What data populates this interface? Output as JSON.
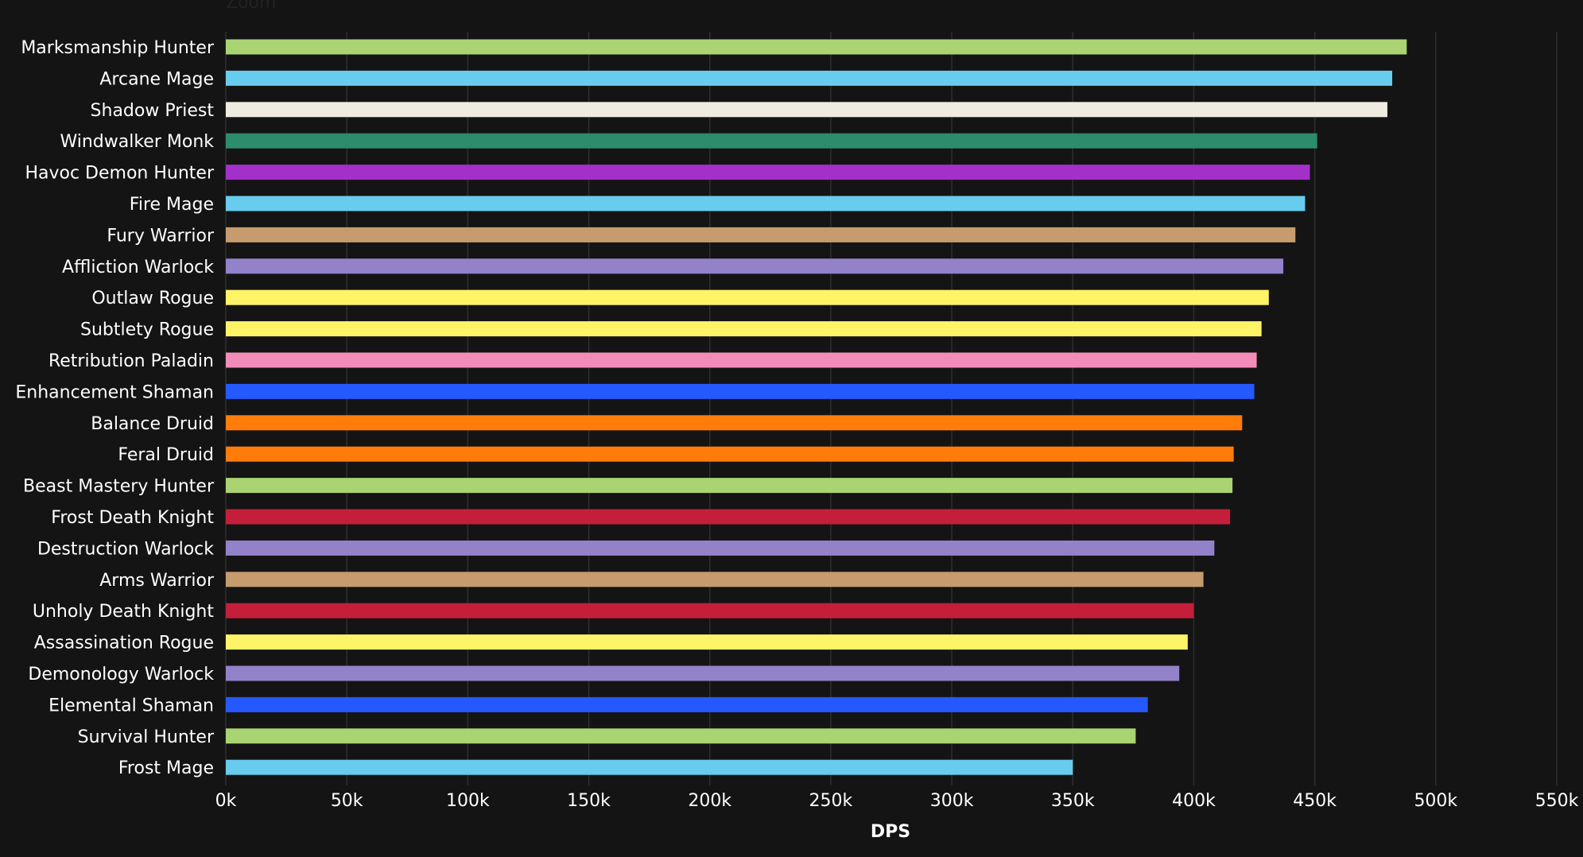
{
  "zoom_label": "Zoom",
  "chart_data": {
    "type": "bar",
    "orientation": "horizontal",
    "xlabel": "DPS",
    "xlim": [
      0,
      550000
    ],
    "x_ticks": [
      {
        "value": 0,
        "label": "0k"
      },
      {
        "value": 50000,
        "label": "50k"
      },
      {
        "value": 100000,
        "label": "100k"
      },
      {
        "value": 150000,
        "label": "150k"
      },
      {
        "value": 200000,
        "label": "200k"
      },
      {
        "value": 250000,
        "label": "250k"
      },
      {
        "value": 300000,
        "label": "300k"
      },
      {
        "value": 350000,
        "label": "350k"
      },
      {
        "value": 400000,
        "label": "400k"
      },
      {
        "value": 450000,
        "label": "450k"
      },
      {
        "value": 500000,
        "label": "500k"
      },
      {
        "value": 550000,
        "label": "550k"
      }
    ],
    "grid": true,
    "bars": [
      {
        "label": "Marksmanship Hunter",
        "value": 488000,
        "color": "#aad372"
      },
      {
        "label": "Arcane Mage",
        "value": 482000,
        "color": "#68ccef"
      },
      {
        "label": "Shadow Priest",
        "value": 480000,
        "color": "#f0ebe0"
      },
      {
        "label": "Windwalker Monk",
        "value": 451000,
        "color": "#2c8c6c"
      },
      {
        "label": "Havoc Demon Hunter",
        "value": 448000,
        "color": "#a330c9"
      },
      {
        "label": "Fire Mage",
        "value": 446000,
        "color": "#68ccef"
      },
      {
        "label": "Fury Warrior",
        "value": 442000,
        "color": "#c69b6d"
      },
      {
        "label": "Affliction Warlock",
        "value": 437000,
        "color": "#9382c9"
      },
      {
        "label": "Outlaw Rogue",
        "value": 431000,
        "color": "#fff468"
      },
      {
        "label": "Subtlety Rogue",
        "value": 428000,
        "color": "#fff468"
      },
      {
        "label": "Retribution Paladin",
        "value": 426000,
        "color": "#f48cba"
      },
      {
        "label": "Enhancement Shaman",
        "value": 425000,
        "color": "#2459ff"
      },
      {
        "label": "Balance Druid",
        "value": 420000,
        "color": "#ff7c0a"
      },
      {
        "label": "Feral Druid",
        "value": 416500,
        "color": "#ff7c0a"
      },
      {
        "label": "Beast Mastery Hunter",
        "value": 416000,
        "color": "#aad372"
      },
      {
        "label": "Frost Death Knight",
        "value": 415000,
        "color": "#c41e3b"
      },
      {
        "label": "Destruction Warlock",
        "value": 408500,
        "color": "#9382c9"
      },
      {
        "label": "Arms Warrior",
        "value": 404000,
        "color": "#c69b6d"
      },
      {
        "label": "Unholy Death Knight",
        "value": 400000,
        "color": "#c41e3b"
      },
      {
        "label": "Assassination Rogue",
        "value": 397500,
        "color": "#fff468"
      },
      {
        "label": "Demonology Warlock",
        "value": 394000,
        "color": "#9382c9"
      },
      {
        "label": "Elemental Shaman",
        "value": 381000,
        "color": "#2459ff"
      },
      {
        "label": "Survival Hunter",
        "value": 376000,
        "color": "#aad372"
      },
      {
        "label": "Frost Mage",
        "value": 350000,
        "color": "#68ccef"
      }
    ]
  }
}
